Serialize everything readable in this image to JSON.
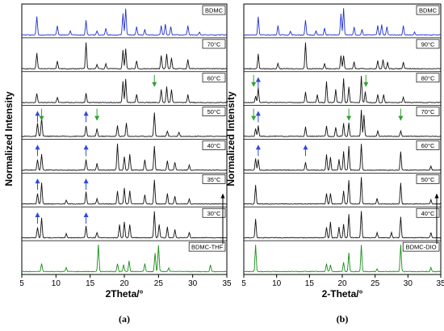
{
  "chart_data": [
    {
      "type": "line",
      "panel_label": "(a)",
      "xlabel": "2Theta/°",
      "ylabel": "Normalized Intensity",
      "xlim": [
        5,
        35
      ],
      "xticks": [
        5,
        10,
        15,
        20,
        25,
        30,
        35
      ],
      "series": [
        {
          "name": "BDMC",
          "color": "#1f2fd0",
          "peaks": [
            [
              7.2,
              0.7
            ],
            [
              10.2,
              0.35
            ],
            [
              12.1,
              0.15
            ],
            [
              14.4,
              0.55
            ],
            [
              16.0,
              0.15
            ],
            [
              17.3,
              0.25
            ],
            [
              19.8,
              0.8
            ],
            [
              20.2,
              1.0
            ],
            [
              21.8,
              0.3
            ],
            [
              23.0,
              0.2
            ],
            [
              25.4,
              0.35
            ],
            [
              26.0,
              0.4
            ],
            [
              26.8,
              0.3
            ],
            [
              29.3,
              0.35
            ],
            [
              31.0,
              0.1
            ]
          ]
        },
        {
          "name": "70°C",
          "color": "#111111",
          "peaks": [
            [
              7.2,
              0.6
            ],
            [
              10.2,
              0.3
            ],
            [
              14.4,
              1.0
            ],
            [
              16.0,
              0.15
            ],
            [
              17.3,
              0.2
            ],
            [
              19.8,
              0.7
            ],
            [
              20.2,
              0.75
            ],
            [
              21.8,
              0.3
            ],
            [
              25.4,
              0.5
            ],
            [
              26.2,
              0.55
            ],
            [
              26.9,
              0.4
            ],
            [
              29.3,
              0.35
            ]
          ]
        },
        {
          "name": "60°C",
          "color": "#111111",
          "peaks": [
            [
              7.2,
              0.35
            ],
            [
              10.2,
              0.2
            ],
            [
              14.4,
              0.35
            ],
            [
              19.8,
              0.8
            ],
            [
              20.2,
              0.9
            ],
            [
              21.8,
              0.3
            ],
            [
              25.4,
              0.5
            ],
            [
              26.2,
              0.6
            ],
            [
              26.9,
              0.5
            ],
            [
              29.3,
              0.3
            ]
          ]
        },
        {
          "name": "50°C",
          "color": "#111111",
          "peaks": [
            [
              7.3,
              0.5
            ],
            [
              7.9,
              0.7
            ],
            [
              14.4,
              0.4
            ],
            [
              16.0,
              0.3
            ],
            [
              19.0,
              0.4
            ],
            [
              20.3,
              0.5
            ],
            [
              24.4,
              0.9
            ],
            [
              26.3,
              0.2
            ],
            [
              28.0,
              0.15
            ]
          ]
        },
        {
          "name": "40°C",
          "color": "#111111",
          "peaks": [
            [
              7.3,
              0.4
            ],
            [
              7.9,
              0.6
            ],
            [
              14.4,
              0.4
            ],
            [
              16.0,
              0.25
            ],
            [
              19.0,
              1.0
            ],
            [
              20.0,
              0.5
            ],
            [
              20.8,
              0.6
            ],
            [
              23.0,
              0.4
            ],
            [
              24.4,
              0.9
            ],
            [
              26.3,
              0.35
            ],
            [
              27.4,
              0.3
            ],
            [
              29.5,
              0.2
            ]
          ]
        },
        {
          "name": "35°C",
          "color": "#111111",
          "peaks": [
            [
              7.3,
              0.4
            ],
            [
              7.9,
              0.8
            ],
            [
              11.5,
              0.15
            ],
            [
              14.4,
              0.45
            ],
            [
              16.0,
              0.2
            ],
            [
              19.0,
              0.5
            ],
            [
              20.0,
              0.6
            ],
            [
              20.8,
              0.5
            ],
            [
              23.0,
              0.35
            ],
            [
              24.4,
              0.9
            ],
            [
              26.3,
              0.4
            ],
            [
              27.4,
              0.3
            ],
            [
              29.5,
              0.2
            ]
          ]
        },
        {
          "name": "30°C",
          "color": "#111111",
          "peaks": [
            [
              7.3,
              0.4
            ],
            [
              7.9,
              0.75
            ],
            [
              11.5,
              0.15
            ],
            [
              14.4,
              0.45
            ],
            [
              16.0,
              0.2
            ],
            [
              19.3,
              0.5
            ],
            [
              20.0,
              0.6
            ],
            [
              20.8,
              0.5
            ],
            [
              24.4,
              1.0
            ],
            [
              25.1,
              0.5
            ],
            [
              26.3,
              0.4
            ],
            [
              27.4,
              0.3
            ],
            [
              29.5,
              0.2
            ]
          ]
        },
        {
          "name": "BDMC-THF",
          "color": "#1a8c1a",
          "peaks": [
            [
              7.9,
              0.3
            ],
            [
              11.5,
              0.15
            ],
            [
              16.2,
              1.0
            ],
            [
              19.0,
              0.3
            ],
            [
              19.9,
              0.25
            ],
            [
              20.7,
              0.4
            ],
            [
              23.0,
              0.3
            ],
            [
              24.5,
              0.7
            ],
            [
              25.0,
              1.0
            ],
            [
              26.5,
              0.15
            ],
            [
              32.6,
              0.25
            ]
          ]
        }
      ],
      "annotations": {
        "blue_up_arrows": [
          {
            "series": "50°C",
            "x": 7.3
          },
          {
            "series": "50°C",
            "x": 14.4
          },
          {
            "series": "40°C",
            "x": 7.3
          },
          {
            "series": "40°C",
            "x": 14.4
          },
          {
            "series": "35°C",
            "x": 7.3
          },
          {
            "series": "35°C",
            "x": 14.4
          },
          {
            "series": "30°C",
            "x": 7.3
          },
          {
            "series": "30°C",
            "x": 14.4
          }
        ],
        "green_down_arrows": [
          {
            "series": "50°C",
            "x": 7.9
          },
          {
            "series": "50°C",
            "x": 16.0
          },
          {
            "series": "60°C",
            "x": 24.4
          }
        ],
        "temperature_arrow": "up"
      }
    },
    {
      "type": "line",
      "panel_label": "(b)",
      "xlabel": "2-Theta/°",
      "ylabel": "Normalized Intensity",
      "xlim": [
        5,
        35
      ],
      "xticks": [
        5,
        10,
        15,
        20,
        25,
        30,
        35
      ],
      "series": [
        {
          "name": "BDMC",
          "color": "#1f2fd0",
          "peaks": [
            [
              7.2,
              0.7
            ],
            [
              10.2,
              0.35
            ],
            [
              12.1,
              0.15
            ],
            [
              14.4,
              0.55
            ],
            [
              16.0,
              0.15
            ],
            [
              17.3,
              0.25
            ],
            [
              19.8,
              0.8
            ],
            [
              20.2,
              1.0
            ],
            [
              21.8,
              0.3
            ],
            [
              23.0,
              0.2
            ],
            [
              25.4,
              0.35
            ],
            [
              26.0,
              0.4
            ],
            [
              26.8,
              0.3
            ],
            [
              29.3,
              0.35
            ],
            [
              31.0,
              0.1
            ]
          ]
        },
        {
          "name": "90°C",
          "color": "#111111",
          "peaks": [
            [
              7.2,
              0.55
            ],
            [
              10.2,
              0.2
            ],
            [
              14.4,
              1.0
            ],
            [
              17.3,
              0.2
            ],
            [
              19.8,
              0.5
            ],
            [
              20.2,
              0.5
            ],
            [
              21.8,
              0.25
            ],
            [
              25.4,
              0.3
            ],
            [
              26.2,
              0.35
            ],
            [
              26.9,
              0.25
            ],
            [
              29.3,
              0.25
            ]
          ]
        },
        {
          "name": "80°C",
          "color": "#111111",
          "peaks": [
            [
              6.8,
              0.25
            ],
            [
              7.2,
              0.55
            ],
            [
              14.4,
              0.4
            ],
            [
              16.2,
              0.3
            ],
            [
              17.6,
              0.8
            ],
            [
              19.0,
              0.5
            ],
            [
              20.2,
              0.9
            ],
            [
              21.0,
              0.6
            ],
            [
              22.9,
              1.0
            ],
            [
              23.5,
              0.4
            ],
            [
              25.4,
              0.3
            ],
            [
              26.3,
              0.3
            ],
            [
              29.3,
              0.2
            ]
          ]
        },
        {
          "name": "70°C",
          "color": "#111111",
          "peaks": [
            [
              6.8,
              0.3
            ],
            [
              7.2,
              0.4
            ],
            [
              14.4,
              0.35
            ],
            [
              17.6,
              0.4
            ],
            [
              19.0,
              0.35
            ],
            [
              20.2,
              0.5
            ],
            [
              21.0,
              0.5
            ],
            [
              22.9,
              1.0
            ],
            [
              23.3,
              0.8
            ],
            [
              25.4,
              0.2
            ],
            [
              28.9,
              0.2
            ]
          ]
        },
        {
          "name": "60°C",
          "color": "#111111",
          "peaks": [
            [
              6.8,
              0.45
            ],
            [
              7.2,
              0.4
            ],
            [
              14.4,
              0.3
            ],
            [
              17.6,
              0.6
            ],
            [
              18.2,
              0.5
            ],
            [
              19.5,
              0.4
            ],
            [
              20.2,
              0.7
            ],
            [
              21.0,
              0.9
            ],
            [
              22.9,
              1.0
            ],
            [
              28.9,
              0.7
            ],
            [
              33.5,
              0.15
            ]
          ]
        },
        {
          "name": "50°C",
          "color": "#111111",
          "peaks": [
            [
              6.8,
              0.7
            ],
            [
              17.6,
              0.4
            ],
            [
              18.2,
              0.4
            ],
            [
              20.2,
              0.5
            ],
            [
              21.0,
              0.9
            ],
            [
              22.9,
              1.0
            ],
            [
              25.3,
              0.2
            ],
            [
              28.9,
              0.8
            ],
            [
              33.5,
              0.15
            ]
          ]
        },
        {
          "name": "40°C",
          "color": "#111111",
          "peaks": [
            [
              6.8,
              0.7
            ],
            [
              17.6,
              0.4
            ],
            [
              18.2,
              0.6
            ],
            [
              19.5,
              0.4
            ],
            [
              20.2,
              0.5
            ],
            [
              21.0,
              0.9
            ],
            [
              22.9,
              1.0
            ],
            [
              25.3,
              0.2
            ],
            [
              27.5,
              0.2
            ],
            [
              28.9,
              0.8
            ],
            [
              33.5,
              0.2
            ]
          ]
        },
        {
          "name": "BDMC-DIO",
          "color": "#1a8c1a",
          "peaks": [
            [
              6.8,
              1.0
            ],
            [
              17.6,
              0.3
            ],
            [
              18.2,
              0.25
            ],
            [
              20.2,
              0.35
            ],
            [
              21.0,
              0.7
            ],
            [
              22.9,
              1.0
            ],
            [
              25.3,
              0.1
            ],
            [
              28.9,
              1.0
            ],
            [
              33.5,
              0.15
            ]
          ]
        }
      ],
      "annotations": {
        "blue_up_arrows": [
          {
            "series": "80°C",
            "x": 7.2
          },
          {
            "series": "70°C",
            "x": 7.2
          },
          {
            "series": "60°C",
            "x": 7.2
          },
          {
            "series": "60°C",
            "x": 14.4
          }
        ],
        "green_down_arrows": [
          {
            "series": "80°C",
            "x": 6.5
          },
          {
            "series": "80°C",
            "x": 23.6
          },
          {
            "series": "70°C",
            "x": 6.5
          },
          {
            "series": "70°C",
            "x": 21.0
          },
          {
            "series": "70°C",
            "x": 28.9
          }
        ],
        "temperature_arrow": "up"
      }
    }
  ]
}
